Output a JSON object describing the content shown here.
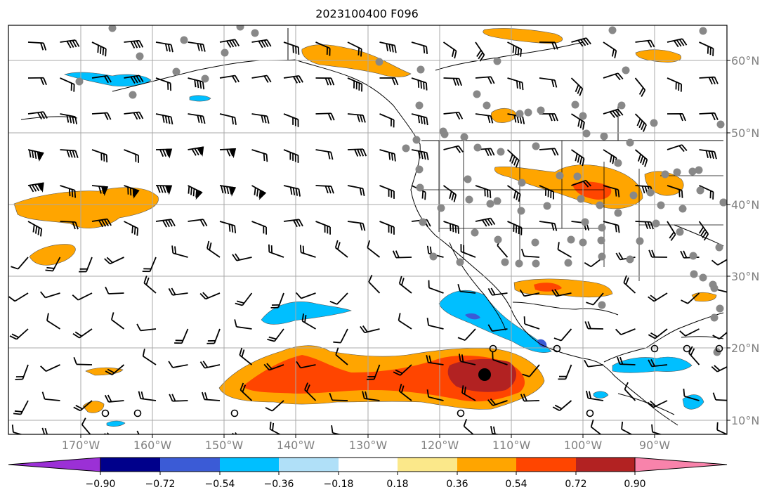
{
  "title": "2023100400 F096",
  "map": {
    "type": "weather-forecast-map",
    "fields": [
      "shaded anomaly contours",
      "wind barbs",
      "station markers"
    ],
    "projection": "plate-carree",
    "lon_range": [
      -180,
      -80
    ],
    "lat_range": [
      8,
      65
    ],
    "gridlines": true,
    "lat_labels": [
      "60°N",
      "50°N",
      "40°N",
      "30°N",
      "20°N",
      "10°N"
    ],
    "lon_labels": [
      "170°W",
      "160°W",
      "150°W",
      "140°W",
      "130°W",
      "120°W",
      "110°W",
      "100°W",
      "90°W"
    ]
  },
  "colorbar": {
    "extend": "both",
    "colors": [
      "#9b30d6",
      "#00008b",
      "#3b5bd6",
      "#00bfff",
      "#b0e0f8",
      "#ffffff",
      "#fbe88a",
      "#ffa500",
      "#ff4500",
      "#b22222",
      "#f883ab"
    ],
    "labels": [
      "−0.90",
      "−0.72",
      "−0.54",
      "−0.36",
      "−0.18",
      "0.18",
      "0.36",
      "0.54",
      "0.72",
      "0.90"
    ]
  }
}
